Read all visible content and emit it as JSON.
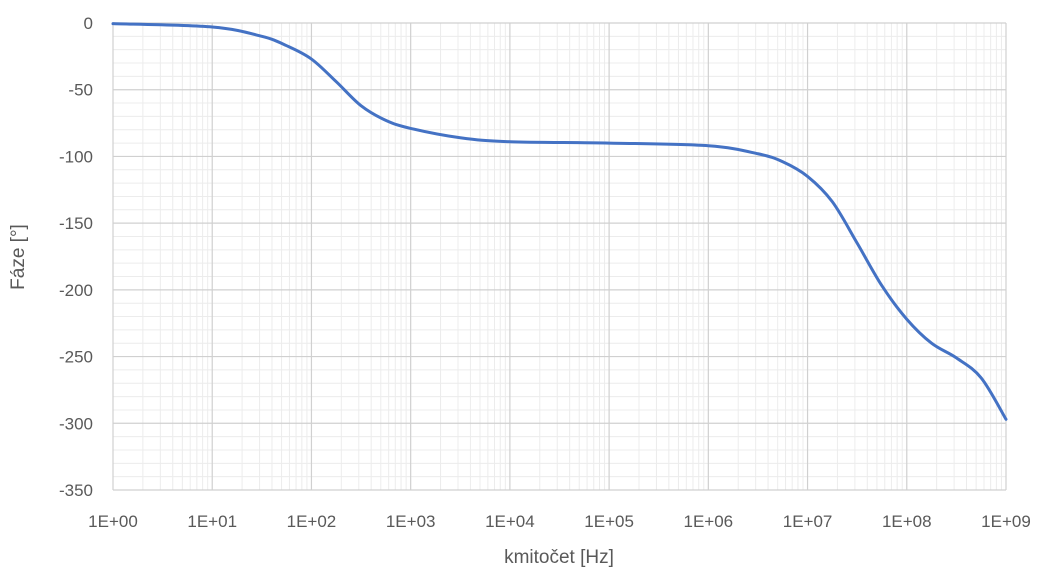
{
  "chart_data": {
    "type": "line",
    "xlabel": "kmitočet [Hz]",
    "ylabel": "Fáze [°]",
    "x_scale": "log",
    "xlim": [
      1,
      1000000000
    ],
    "ylim": [
      -350,
      0
    ],
    "grid": true,
    "x_tick_values": [
      1,
      10,
      100,
      1000,
      10000,
      100000,
      1000000,
      10000000,
      100000000,
      1000000000
    ],
    "x_tick_labels": [
      "1E+00",
      "1E+01",
      "1E+02",
      "1E+03",
      "1E+04",
      "1E+05",
      "1E+06",
      "1E+07",
      "1E+08",
      "1E+09"
    ],
    "y_tick_values": [
      0,
      -50,
      -100,
      -150,
      -200,
      -250,
      -300,
      -350
    ],
    "y_tick_labels": [
      "0",
      "-50",
      "-100",
      "-150",
      "-200",
      "-250",
      "-300",
      "-350"
    ],
    "series": [
      {
        "color": "#4472C4",
        "x": [
          1,
          10,
          31.6,
          56.2,
          100,
          177.8,
          316,
          562,
          1000,
          3162,
          10000,
          100000,
          1000000,
          3162000,
          5623000,
          10000000,
          17780000,
          31620000,
          56230000,
          100000000,
          177800000,
          316200000,
          562300000,
          1000000000
        ],
        "y": [
          -0.5,
          -3,
          -10,
          -17,
          -27,
          -44,
          -62,
          -73,
          -79,
          -86,
          -89,
          -90,
          -92,
          -98,
          -104,
          -115,
          -134,
          -165,
          -197,
          -222,
          -240,
          -251,
          -266,
          -297
        ]
      }
    ]
  }
}
